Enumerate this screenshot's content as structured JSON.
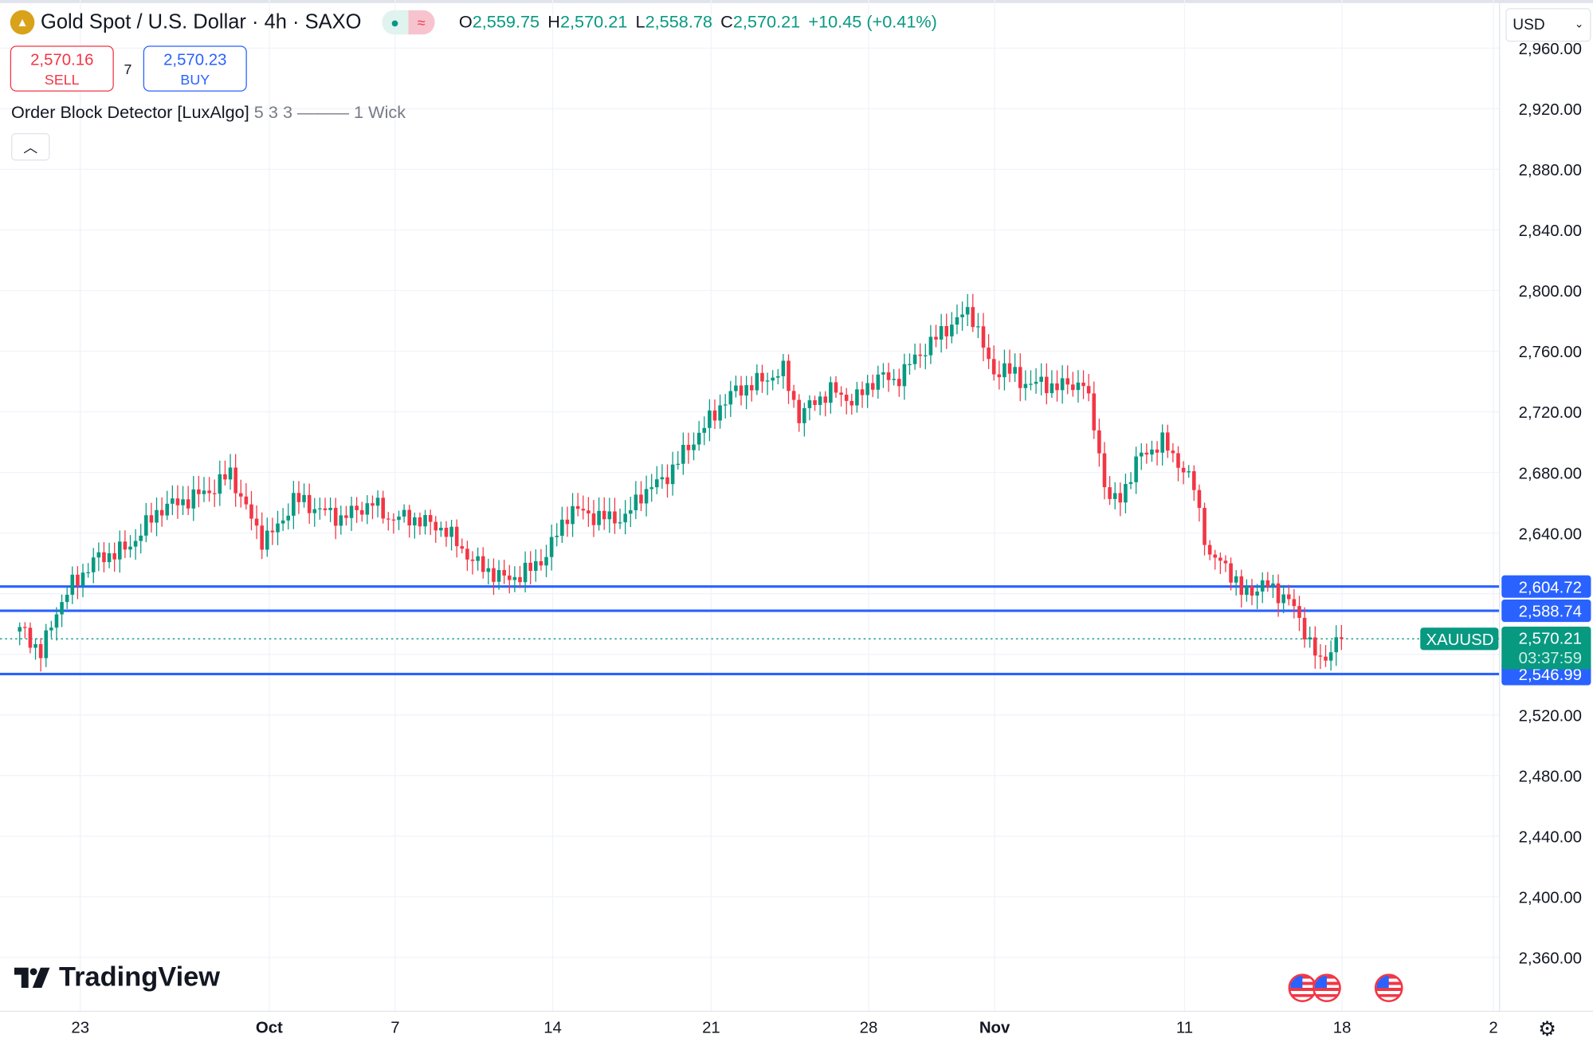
{
  "header": {
    "symbol_title": "Gold Spot / U.S. Dollar · 4h · SAXO",
    "ohlc": {
      "o_label": "O",
      "o": "2,559.75",
      "h_label": "H",
      "h": "2,570.21",
      "l_label": "L",
      "l": "2,558.78",
      "c_label": "C",
      "c": "2,570.21",
      "change": "+10.45 (+0.41%)"
    },
    "market_status_icon": "dot-icon",
    "delay_icon": "approx-icon"
  },
  "trade": {
    "sell_price": "2,570.16",
    "sell_label": "SELL",
    "spread": "7",
    "buy_price": "2,570.23",
    "buy_label": "BUY"
  },
  "indicator": {
    "name": "Order Block Detector [LuxAlgo]",
    "params": "5 3 3 ——— 1 Wick",
    "collapse_icon": "chevron-up-icon"
  },
  "currency": "USD",
  "branding": "TradingView",
  "price_labels": {
    "symbol": "XAUUSD",
    "last": "2,570.21",
    "countdown": "03:37:59",
    "ob1": "2,604.72",
    "ob2": "2,588.74",
    "ob3": "2,546.99"
  },
  "colors": {
    "up": "#089981",
    "down": "#f23645",
    "order_block": "#2962ff",
    "grid": "#f0f3fa"
  },
  "chart_data": {
    "type": "candlestick",
    "timeframe": "4h",
    "y_ticks": [
      "2,960.00",
      "2,920.00",
      "2,880.00",
      "2,840.00",
      "2,800.00",
      "2,760.00",
      "2,720.00",
      "2,680.00",
      "2,640.00",
      "2,520.00",
      "2,480.00",
      "2,440.00",
      "2,400.00",
      "2,360.00"
    ],
    "x_ticks": [
      "23",
      "Oct",
      "7",
      "14",
      "21",
      "28",
      "Nov",
      "11",
      "18",
      "2"
    ],
    "ylim": [
      2340,
      2970
    ],
    "horizontal_levels": [
      2604.72,
      2588.74,
      2546.99
    ],
    "last_price": 2570.21,
    "trading_days": [
      "Sep 19",
      "Sep 20",
      "Sep 23",
      "Sep 24",
      "Sep 25",
      "Sep 26",
      "Sep 27",
      "Sep 30",
      "Oct 1",
      "Oct 2",
      "Oct 3",
      "Oct 4",
      "Oct 7",
      "Oct 8",
      "Oct 9",
      "Oct 10",
      "Oct 11",
      "Oct 14",
      "Oct 15",
      "Oct 16",
      "Oct 17",
      "Oct 18",
      "Oct 21",
      "Oct 22",
      "Oct 23",
      "Oct 24",
      "Oct 25",
      "Oct 28",
      "Oct 29",
      "Oct 30",
      "Oct 31",
      "Nov 1",
      "Nov 4",
      "Nov 5",
      "Nov 6",
      "Nov 7",
      "Nov 8",
      "Nov 11",
      "Nov 12",
      "Nov 13",
      "Nov 14",
      "Nov 15"
    ],
    "price_path": [
      [
        "Sep 19",
        2575
      ],
      [
        "Sep 19",
        2560
      ],
      [
        "Sep 20",
        2589
      ],
      [
        "Sep 20",
        2606
      ],
      [
        "Sep 23",
        2623
      ],
      [
        "Sep 24",
        2630
      ],
      [
        "Sep 25",
        2656
      ],
      [
        "Sep 26",
        2663
      ],
      [
        "Sep 27",
        2670
      ],
      [
        "Sep 27",
        2680
      ],
      [
        "Sep 30",
        2656
      ],
      [
        "Sep 30",
        2636
      ],
      [
        "Oct 1",
        2643
      ],
      [
        "Oct 1",
        2663
      ],
      [
        "Oct 2",
        2656
      ],
      [
        "Oct 3",
        2650
      ],
      [
        "Oct 3",
        2655
      ],
      [
        "Oct 4",
        2660
      ],
      [
        "Oct 4",
        2650
      ],
      [
        "Oct 7",
        2650
      ],
      [
        "Oct 8",
        2643
      ],
      [
        "Oct 9",
        2620
      ],
      [
        "Oct 10",
        2609
      ],
      [
        "Oct 11",
        2616
      ],
      [
        "Oct 11",
        2626
      ],
      [
        "Oct 14",
        2656
      ],
      [
        "Oct 15",
        2650
      ],
      [
        "Oct 16",
        2650
      ],
      [
        "Oct 16",
        2666
      ],
      [
        "Oct 17",
        2676
      ],
      [
        "Oct 18",
        2697
      ],
      [
        "Oct 18",
        2710
      ],
      [
        "Oct 21",
        2724
      ],
      [
        "Oct 21",
        2734
      ],
      [
        "Oct 22",
        2740
      ],
      [
        "Oct 23",
        2747
      ],
      [
        "Oct 23",
        2717
      ],
      [
        "Oct 24",
        2727
      ],
      [
        "Oct 24",
        2734
      ],
      [
        "Oct 25",
        2727
      ],
      [
        "Oct 28",
        2744
      ],
      [
        "Oct 28",
        2740
      ],
      [
        "Oct 29",
        2757
      ],
      [
        "Oct 30",
        2777
      ],
      [
        "Oct 31",
        2787
      ],
      [
        "Oct 31",
        2770
      ],
      [
        "Oct 31",
        2744
      ],
      [
        "Nov 1",
        2750
      ],
      [
        "Nov 1",
        2740
      ],
      [
        "Nov 4",
        2738
      ],
      [
        "Nov 5",
        2737
      ],
      [
        "Nov 5",
        2740
      ],
      [
        "Nov 6",
        2703
      ],
      [
        "Nov 6",
        2663
      ],
      [
        "Nov 6",
        2660
      ],
      [
        "Nov 7",
        2690
      ],
      [
        "Nov 8",
        2700
      ],
      [
        "Nov 8",
        2687
      ],
      [
        "Nov 11",
        2670
      ],
      [
        "Nov 11",
        2623
      ],
      [
        "Nov 12",
        2620
      ],
      [
        "Nov 12",
        2600
      ],
      [
        "Nov 13",
        2606
      ],
      [
        "Nov 14",
        2596
      ],
      [
        "Nov 14",
        2576
      ],
      [
        "Nov 15",
        2553
      ],
      [
        "Nov 15",
        2570
      ]
    ]
  }
}
